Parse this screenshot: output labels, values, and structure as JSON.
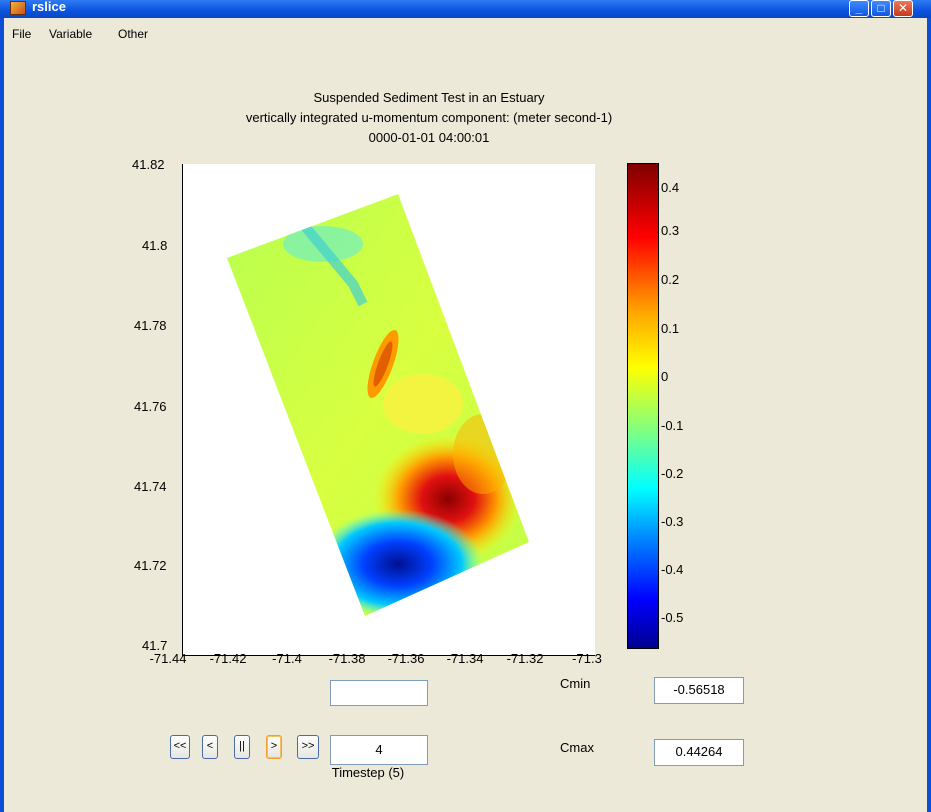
{
  "window": {
    "title": "rslice"
  },
  "menu": {
    "items": [
      "File",
      "Variable",
      "Other"
    ]
  },
  "plot": {
    "title_line1": "Suspended Sediment Test in an Estuary",
    "title_line2": "vertically integrated u-momentum component: (meter second-1)",
    "title_line3": "0000-01-01 04:00:01",
    "x_ticks": [
      "-71.44",
      "-71.42",
      "-71.4",
      "-71.38",
      "-71.36",
      "-71.34",
      "-71.32",
      "-71.3"
    ],
    "y_ticks": [
      "41.82",
      "41.8",
      "41.78",
      "41.76",
      "41.74",
      "41.72",
      "41.7"
    ],
    "colorbar_ticks": [
      "0.4",
      "0.3",
      "0.2",
      "0.1",
      "0",
      "-0.1",
      "-0.2",
      "-0.3",
      "-0.4",
      "-0.5"
    ]
  },
  "controls": {
    "cmin_label": "Cmin",
    "cmin_value": "-0.56518",
    "cmax_label": "Cmax",
    "cmax_value": "0.44264",
    "top_box_value": "",
    "timestep_value": "4",
    "timestep_label": "Timestep (5)",
    "nav": [
      "<<",
      "<",
      "||",
      ">",
      ">>"
    ]
  },
  "colors": {
    "title_bar": "#0a52dd",
    "background": "#ece9d8"
  }
}
